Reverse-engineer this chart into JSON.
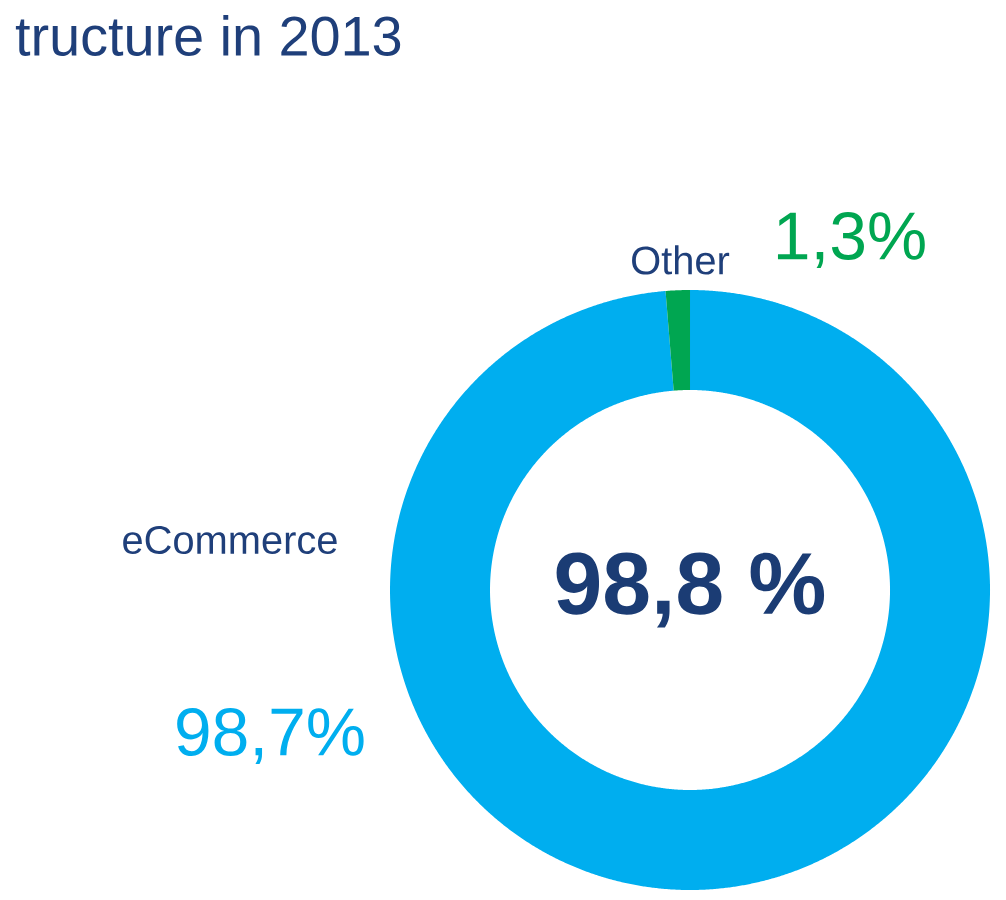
{
  "chart_data": {
    "type": "donut",
    "title": "tructure in 2013",
    "categories": [
      "eCommerce",
      "Other"
    ],
    "values": [
      98.7,
      1.3
    ],
    "colors": [
      "#00aeef",
      "#00a651"
    ],
    "value_labels": [
      "98,7%",
      "1,3%"
    ],
    "annotations": [
      "98,8 %"
    ],
    "legend": false
  }
}
